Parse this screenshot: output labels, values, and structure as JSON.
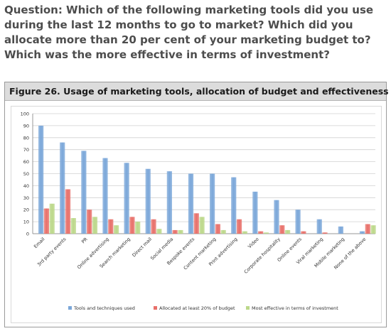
{
  "question": "Question: Which of the following marketing tools did you use during the last 12 months to go to market? Which did you allocate more than 20 per cent of your marketing budget to? Which was the more effective in terms of investment?",
  "figure_title": "Figure 26. Usage of marketing tools, allocation of budget and effectiveness",
  "colors": {
    "tools": "#7ba7d9",
    "allocated": "#e8706a",
    "effective": "#bcd88a",
    "grid": "#d0d0d0",
    "axis": "#808080"
  },
  "chart_data": {
    "type": "bar",
    "categories": [
      "Email",
      "3rd party events",
      "PR",
      "Online advertising",
      "Search marketing",
      "Direct mail",
      "Social media",
      "Bespoke events",
      "Content marketing",
      "Print advertising",
      "Video",
      "Corporate hospitality",
      "Online events",
      "Viral marketing",
      "Mobile marketing",
      "None of the above"
    ],
    "series": [
      {
        "name": "Tools and techniques used",
        "values": [
          90,
          76,
          69,
          63,
          59,
          54,
          52,
          50,
          50,
          47,
          35,
          28,
          20,
          12,
          6,
          2
        ]
      },
      {
        "name": "Allocated at least 20% of budget",
        "values": [
          21,
          37,
          20,
          12,
          14,
          12,
          3,
          17,
          8,
          12,
          2,
          7,
          2,
          1,
          0,
          8
        ]
      },
      {
        "name": "Most effective in terms of investment",
        "values": [
          25,
          13,
          14,
          7,
          10,
          4,
          3,
          14,
          3,
          2,
          1,
          3,
          0,
          0,
          0,
          7
        ]
      }
    ],
    "yticks": [
      0,
      10,
      20,
      30,
      40,
      50,
      60,
      70,
      80,
      90,
      100
    ],
    "ylim": [
      0,
      100
    ],
    "grid": true,
    "legend": "bottom"
  }
}
